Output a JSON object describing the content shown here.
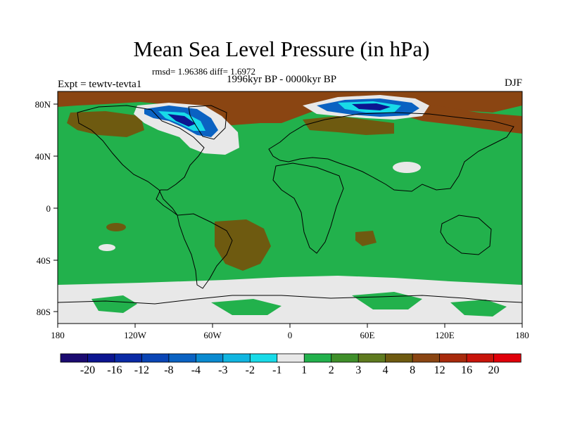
{
  "title": "Mean Sea Level Pressure (in hPa)",
  "stats": "rmsd= 1.96386 diff= 1.6972",
  "experiment": "Expt = tewtv-tevta1",
  "period": "1996kyr BP - 0000kyr BP",
  "season": "DJF",
  "x_ticks": [
    "180",
    "120W",
    "60W",
    "0",
    "60E",
    "120E",
    "180"
  ],
  "y_ticks": [
    "80N",
    "40N",
    "0",
    "40S",
    "80S"
  ],
  "colorbar": {
    "labels": [
      "-20",
      "-16",
      "-12",
      "-8",
      "-4",
      "-3",
      "-2",
      "-1",
      "1",
      "2",
      "3",
      "4",
      "8",
      "12",
      "16",
      "20"
    ],
    "colors": [
      "#1a0a70",
      "#0c1590",
      "#0a2aa5",
      "#0a45b5",
      "#0a62c2",
      "#0a8ad0",
      "#10b5e0",
      "#18dbe8",
      "#e8e8e8",
      "#22b14c",
      "#3f8f2a",
      "#5e7a1f",
      "#6e5a10",
      "#8a4512",
      "#a82a0c",
      "#c8140a",
      "#e0000a"
    ]
  },
  "colors": {
    "ocean_background": "#22b14c",
    "near_zero": "#e8e8e8",
    "brown": "#8a4512",
    "olive": "#6e5a10",
    "dark_green": "#3f8f2a",
    "blue": "#0a62c2",
    "cyan": "#18dbe8",
    "navy": "#0c1590"
  }
}
